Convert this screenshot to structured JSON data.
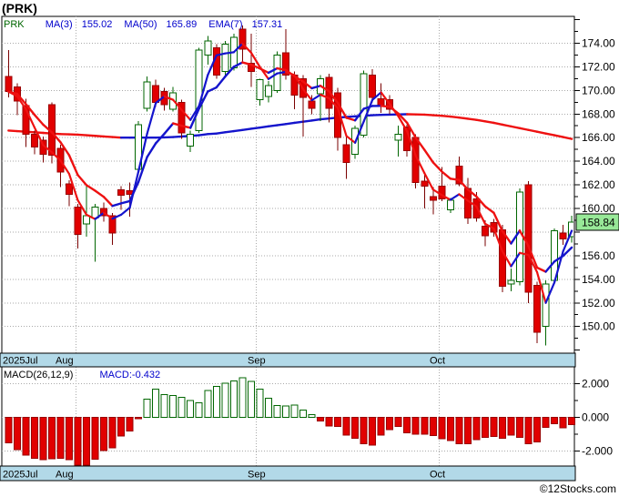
{
  "header": {
    "symbol_title": "(PRK)"
  },
  "legend": {
    "symbol": "PRK",
    "ma3_label": "MA(3)",
    "ma3_value": "155.02",
    "ma50_label": "MA(50)",
    "ma50_value": "165.89",
    "ema7_label": "EMA(7)",
    "ema7_value": "157.31"
  },
  "macd_header": {
    "label": "MACD(26,12,9)",
    "value": "MACD:-0.432"
  },
  "watermark": "©12Stocks.com",
  "colors": {
    "down_body": "#e10000",
    "down_edge": "#990000",
    "down_wick": "#7a0000",
    "up_edge": "#006600",
    "up_fill": "#ffffff",
    "up_wick": "#006600",
    "ma_up": "#1414cc",
    "ma_down": "#ee1111",
    "grid": "#aaaaaa",
    "band_bg": "#b2d9e8",
    "border": "#000000",
    "last_price_bg": "#98e898",
    "legend_blue": "#0000cc",
    "legend_green": "#006600"
  },
  "axis": {
    "price_major_ticks": [
      174,
      172,
      170,
      168,
      166,
      164,
      162,
      160,
      156,
      154,
      152,
      150
    ],
    "last_price_label": "158.84",
    "macd_ticks": [
      "2.000",
      "0.000",
      "-2.000"
    ],
    "macd_tick_values": [
      2,
      0,
      -2
    ]
  },
  "chart_data": {
    "type": "candlestick+macd",
    "title": "(PRK)",
    "price_panel": {
      "ylim": [
        147.74,
        176.27
      ],
      "gridlines": [
        150,
        152,
        154,
        156,
        158,
        160,
        162,
        164,
        166,
        168,
        170,
        172,
        174
      ],
      "last_close": 158.84,
      "indicators": [
        "MA(3)=155.02",
        "MA(50)=165.89",
        "EMA(7)=157.31"
      ],
      "candles_ohlc": [
        [
          171.2,
          173.4,
          169.4,
          169.9
        ],
        [
          170.3,
          170.6,
          167.9,
          169.1
        ],
        [
          168.7,
          169.3,
          165.2,
          166.3
        ],
        [
          166.3,
          166.6,
          164.6,
          165.2
        ],
        [
          165.8,
          166.1,
          163.9,
          164.6
        ],
        [
          168.8,
          169.0,
          163.8,
          164.5
        ],
        [
          165.1,
          165.4,
          161.8,
          163.1
        ],
        [
          162.1,
          162.4,
          160.2,
          161.2
        ],
        [
          160.1,
          160.4,
          156.6,
          157.8
        ],
        [
          158.7,
          161.9,
          157.6,
          159.4
        ],
        [
          159.2,
          160.4,
          155.5,
          160.1
        ],
        [
          160.0,
          160.5,
          158.9,
          159.4
        ],
        [
          159.4,
          159.6,
          156.9,
          157.9
        ],
        [
          161.6,
          161.9,
          159.9,
          161.1
        ],
        [
          161.5,
          162.2,
          159.3,
          161.2
        ],
        [
          163.3,
          167.4,
          163.0,
          167.1
        ],
        [
          168.5,
          171.2,
          168.2,
          170.7
        ],
        [
          170.4,
          170.9,
          168.6,
          169.0
        ],
        [
          169.9,
          170.2,
          168.3,
          168.8
        ],
        [
          168.4,
          170.3,
          168.2,
          169.8
        ],
        [
          169.0,
          169.2,
          165.9,
          166.4
        ],
        [
          165.3,
          166.6,
          164.8,
          166.3
        ],
        [
          166.6,
          173.6,
          166.4,
          173.4
        ],
        [
          173.0,
          174.6,
          172.2,
          174.2
        ],
        [
          173.6,
          173.9,
          171.0,
          171.3
        ],
        [
          171.6,
          174.2,
          171.3,
          173.9
        ],
        [
          171.9,
          174.8,
          171.7,
          174.5
        ],
        [
          175.2,
          175.5,
          172.3,
          173.5
        ],
        [
          172.3,
          174.8,
          170.3,
          171.6
        ],
        [
          169.2,
          171.0,
          168.7,
          170.9
        ],
        [
          169.5,
          170.8,
          169.0,
          170.4
        ],
        [
          170.0,
          173.3,
          169.8,
          173.0
        ],
        [
          173.2,
          175.2,
          170.9,
          171.3
        ],
        [
          171.3,
          171.6,
          168.4,
          169.6
        ],
        [
          171.0,
          171.3,
          166.1,
          169.4
        ],
        [
          169.1,
          169.6,
          168.0,
          168.5
        ],
        [
          169.7,
          171.3,
          167.4,
          171.0
        ],
        [
          171.1,
          171.4,
          167.3,
          168.5
        ],
        [
          169.8,
          170.2,
          164.9,
          166.0
        ],
        [
          165.4,
          166.2,
          162.5,
          163.9
        ],
        [
          164.6,
          167.0,
          164.2,
          166.8
        ],
        [
          166.2,
          171.7,
          166.0,
          171.4
        ],
        [
          171.3,
          171.8,
          169.0,
          169.4
        ],
        [
          169.3,
          170.6,
          168.1,
          168.7
        ],
        [
          169.2,
          169.6,
          168.0,
          168.4
        ],
        [
          165.8,
          167.0,
          164.4,
          166.3
        ],
        [
          166.9,
          167.1,
          164.4,
          164.9
        ],
        [
          166.0,
          166.3,
          161.7,
          162.2
        ],
        [
          162.3,
          162.9,
          160.0,
          161.9
        ],
        [
          161.0,
          161.8,
          159.5,
          160.7
        ],
        [
          161.9,
          163.5,
          160.6,
          160.8
        ],
        [
          159.9,
          160.9,
          159.6,
          160.7
        ],
        [
          163.6,
          164.4,
          161.9,
          162.1
        ],
        [
          161.7,
          162.6,
          158.7,
          159.2
        ],
        [
          160.8,
          161.4,
          158.9,
          159.2
        ],
        [
          158.5,
          159.0,
          156.8,
          157.7
        ],
        [
          158.8,
          159.1,
          157.6,
          158.0
        ],
        [
          158.2,
          158.6,
          152.9,
          153.4
        ],
        [
          153.6,
          154.9,
          153.0,
          153.9
        ],
        [
          153.8,
          161.7,
          153.5,
          161.4
        ],
        [
          162.0,
          162.3,
          152.0,
          152.9
        ],
        [
          153.5,
          153.8,
          148.6,
          149.5
        ],
        [
          150.0,
          153.9,
          148.4,
          153.6
        ],
        [
          153.9,
          158.3,
          153.6,
          158.1
        ],
        [
          157.9,
          158.6,
          156.9,
          157.4
        ],
        [
          157.6,
          159.4,
          157.1,
          158.84
        ]
      ],
      "ma50": [
        166.6,
        166.55,
        166.5,
        166.45,
        166.4,
        166.35,
        166.3,
        166.28,
        166.25,
        166.2,
        166.15,
        166.1,
        166.05,
        166.0,
        166.0,
        166.0,
        166.0,
        166.0,
        166.02,
        166.05,
        166.1,
        166.15,
        166.2,
        166.3,
        166.35,
        166.45,
        166.55,
        166.65,
        166.75,
        166.85,
        166.95,
        167.05,
        167.15,
        167.25,
        167.35,
        167.45,
        167.55,
        167.62,
        167.7,
        167.75,
        167.8,
        167.85,
        167.9,
        167.93,
        167.95,
        167.97,
        167.98,
        167.97,
        167.95,
        167.9,
        167.85,
        167.78,
        167.7,
        167.6,
        167.5,
        167.38,
        167.25,
        167.1,
        166.95,
        166.8,
        166.65,
        166.5,
        166.35,
        166.2,
        166.05,
        165.89
      ],
      "ma3_period": 3,
      "ema7_period": 7
    },
    "macd_panel": {
      "ylim": [
        -2.9,
        2.99
      ],
      "gridlines": [
        2,
        0,
        -2
      ],
      "last_value": -0.432,
      "values": [
        -1.53,
        -1.92,
        -2.25,
        -2.43,
        -2.52,
        -2.47,
        -2.43,
        -2.52,
        -2.97,
        -2.84,
        -2.49,
        -1.98,
        -1.83,
        -1.12,
        -0.81,
        -0.1,
        1.08,
        1.66,
        1.35,
        1.3,
        1.17,
        1.0,
        0.86,
        1.59,
        1.84,
        2.03,
        2.16,
        2.35,
        2.13,
        1.66,
        1.13,
        0.7,
        0.67,
        0.73,
        0.42,
        0.15,
        -0.22,
        -0.52,
        -0.55,
        -1.07,
        -1.25,
        -1.57,
        -1.66,
        -1.07,
        -0.74,
        -0.55,
        -0.92,
        -1.01,
        -1.01,
        -1.1,
        -1.29,
        -1.38,
        -1.57,
        -1.57,
        -1.33,
        -1.2,
        -1.14,
        -1.25,
        -1.07,
        -1.2,
        -1.57,
        -1.47,
        -0.59,
        -0.4,
        -0.64,
        -0.432
      ]
    },
    "months": [
      {
        "label": "2025Jul",
        "x": 3
      },
      {
        "label": "Aug",
        "x": 61
      },
      {
        "label": "Sep",
        "x": 272
      },
      {
        "label": "Oct",
        "x": 472
      }
    ],
    "month_gridline_indices": [
      7.8,
      28.6,
      49.7
    ]
  }
}
